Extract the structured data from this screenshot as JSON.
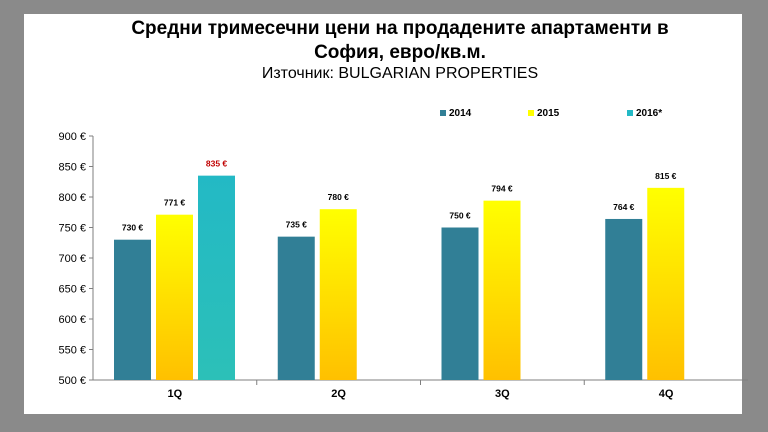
{
  "chart_data": {
    "type": "bar",
    "title": "Средни тримесечни цени на продадените апартаменти в",
    "title_line2": "София, евро/кв.м.",
    "subtitle": "Източник: BULGARIAN PROPERTIES",
    "categories": [
      "1Q",
      "2Q",
      "3Q",
      "4Q"
    ],
    "series": [
      {
        "name": "2014",
        "values": [
          730,
          735,
          750,
          764
        ],
        "labels": [
          "730 €",
          "735 €",
          "750 €",
          "764 €"
        ],
        "color": "#317f96"
      },
      {
        "name": "2015",
        "values": [
          771,
          780,
          794,
          815
        ],
        "labels": [
          "771 €",
          "780 €",
          "794 €",
          "815 €"
        ],
        "color_top": "#ffff00",
        "color_bottom": "#ffc000"
      },
      {
        "name": "2016*",
        "values": [
          835,
          null,
          null,
          null
        ],
        "labels": [
          "835 €",
          "",
          "",
          ""
        ],
        "color_top": "#23b9c5",
        "color_bottom": "#2cc0b8",
        "label_color": "#c00000"
      }
    ],
    "y_ticks": [
      "500 €",
      "550 €",
      "600 €",
      "650 €",
      "700 €",
      "750 €",
      "800 €",
      "850 €",
      "900 €"
    ],
    "ylim": [
      500,
      900
    ],
    "legend_position": "top-right",
    "grid": false
  }
}
